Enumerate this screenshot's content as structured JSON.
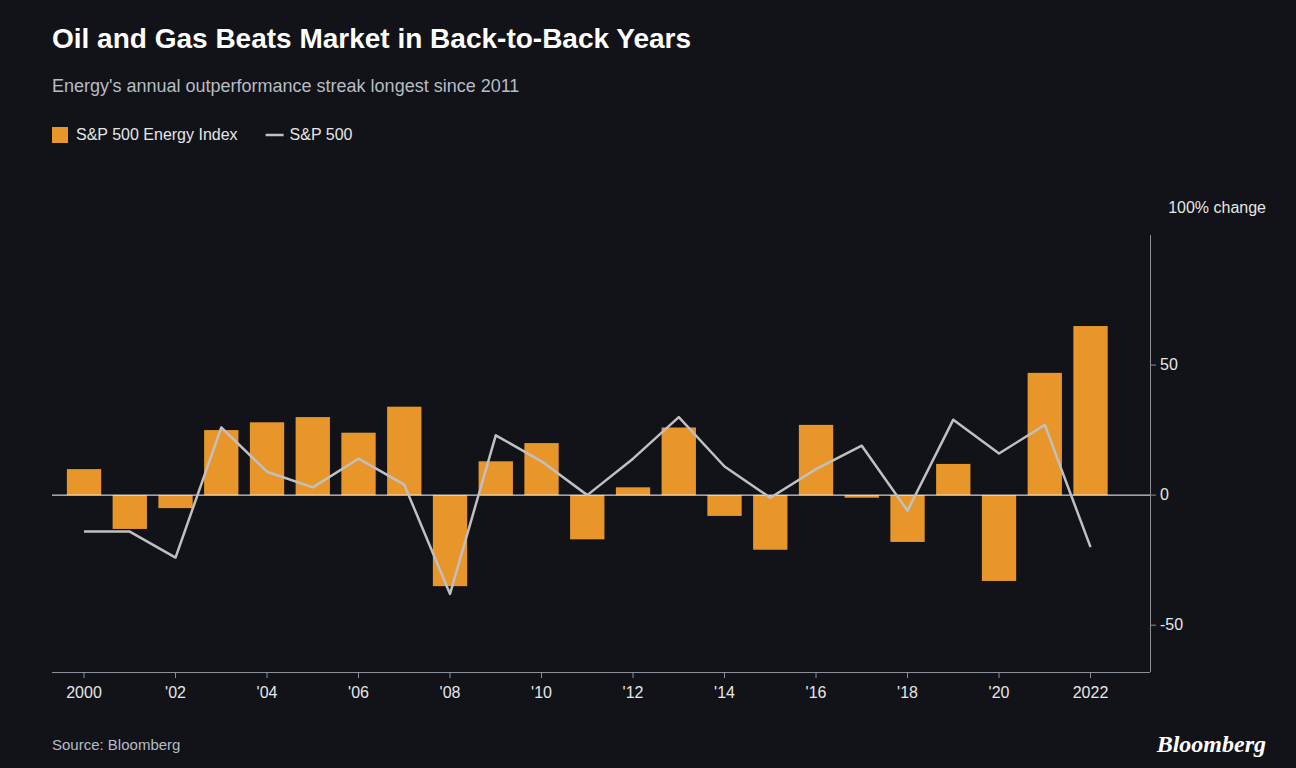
{
  "chart_data": {
    "type": "bar",
    "title": "Oil and Gas Beats Market in Back-to-Back Years",
    "subtitle": "Energy's annual outperformance streak longest since 2011",
    "ylabel": "100% change",
    "source": "Source: Bloomberg",
    "annotations": [
      "Bloomberg"
    ],
    "x": [
      2000,
      2001,
      2002,
      2003,
      2004,
      2005,
      2006,
      2007,
      2008,
      2009,
      2010,
      2011,
      2012,
      2013,
      2014,
      2015,
      2016,
      2017,
      2018,
      2019,
      2020,
      2021,
      2022
    ],
    "series": [
      {
        "name": "S&P 500 Energy Index",
        "type": "bar",
        "color": "#E8962A",
        "values": [
          10,
          -13,
          -5,
          25,
          28,
          30,
          24,
          34,
          -35,
          13,
          20,
          -17,
          3,
          26,
          -8,
          -21,
          27,
          -1,
          -18,
          12,
          -33,
          47,
          65
        ]
      },
      {
        "name": "S&P 500",
        "type": "line",
        "color": "#C0C0C0",
        "values": [
          -14,
          -14,
          -24,
          26,
          9,
          3,
          14,
          4,
          -38,
          23,
          13,
          0,
          14,
          30,
          11,
          -1,
          10,
          19,
          -6,
          29,
          16,
          27,
          -20
        ]
      }
    ],
    "xlim": [
      1999.3,
      2023.3
    ],
    "xticks": [
      2000,
      {
        "value": 2002,
        "label": "'02"
      },
      {
        "value": 2004,
        "label": "'04"
      },
      {
        "value": 2006,
        "label": "'06"
      },
      {
        "value": 2008,
        "label": "'08"
      },
      {
        "value": 2010,
        "label": "'10"
      },
      {
        "value": 2012,
        "label": "'12"
      },
      {
        "value": 2014,
        "label": "'14"
      },
      {
        "value": 2016,
        "label": "'16"
      },
      {
        "value": 2018,
        "label": "'18"
      },
      {
        "value": 2020,
        "label": "'20"
      },
      2022
    ],
    "ylim": [
      -68,
      100
    ],
    "yticks": [
      -50,
      0,
      50
    ],
    "grid": false,
    "legend": "top"
  }
}
